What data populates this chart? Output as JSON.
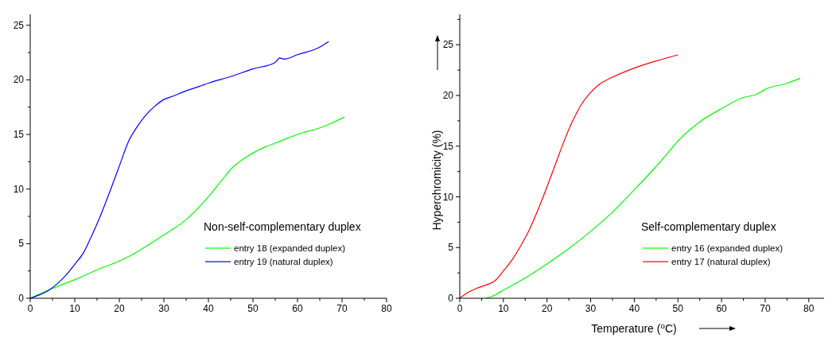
{
  "chart_data": [
    {
      "type": "line",
      "legend_title": "Non-self-complementary duplex",
      "legend": "bottom right",
      "xlim": [
        0,
        80
      ],
      "ylim": [
        0,
        26
      ],
      "xticks": [
        0,
        {
          "value": 5,
          "label": null
        },
        10,
        {
          "value": 15,
          "label": null
        },
        20,
        {
          "value": 25,
          "label": null
        },
        30,
        {
          "value": 35,
          "label": null
        },
        40,
        {
          "value": 45,
          "label": null
        },
        50,
        {
          "value": 55,
          "label": null
        },
        60,
        {
          "value": 65,
          "label": null
        },
        70,
        {
          "value": 75,
          "label": null
        },
        80
      ],
      "yticks": [
        0,
        {
          "value": 2.5,
          "label": null
        },
        5,
        {
          "value": 7.5,
          "label": null
        },
        10,
        {
          "value": 12.5,
          "label": null
        },
        15,
        {
          "value": 17.5,
          "label": null
        },
        20,
        {
          "value": 22.5,
          "label": null
        },
        25
      ],
      "series": [
        {
          "name": "entry 18 (expanded duplex)",
          "color": "#00ff00",
          "x": [
            0,
            5,
            10,
            15,
            20,
            22,
            25,
            30,
            35,
            40,
            43,
            45,
            48,
            50,
            53,
            55,
            58,
            60,
            65,
            68,
            70.5
          ],
          "values": [
            0,
            0.9,
            1.7,
            2.6,
            3.4,
            3.8,
            4.5,
            5.8,
            7.2,
            9.3,
            10.8,
            11.8,
            12.8,
            13.3,
            13.9,
            14.2,
            14.7,
            15.0,
            15.6,
            16.1,
            16.6
          ]
        },
        {
          "name": "entry 19 (natural duplex)",
          "color": "#0000ff",
          "x": [
            0,
            2,
            4,
            6,
            8,
            10,
            12,
            14,
            16,
            18,
            20,
            22,
            24,
            26,
            28,
            30,
            32,
            35,
            38,
            40,
            45,
            50,
            55,
            56,
            57,
            60,
            65,
            67
          ],
          "values": [
            0,
            0.3,
            0.7,
            1.3,
            2.1,
            3.1,
            4.2,
            5.9,
            7.8,
            9.9,
            12.1,
            14.3,
            15.7,
            16.8,
            17.6,
            18.2,
            18.5,
            19.0,
            19.4,
            19.7,
            20.3,
            21.0,
            21.6,
            22.0,
            21.9,
            22.3,
            23.0,
            23.5
          ]
        }
      ]
    },
    {
      "type": "line",
      "xlabel": "Temperature ($^{o}$C)",
      "ylabel": "Hyperchromicity (%)",
      "legend_title": "Self-complementary duplex",
      "legend": "bottom right",
      "xlim": [
        0,
        83.5
      ],
      "ylim": [
        0,
        28
      ],
      "xticks": [
        0,
        {
          "value": 5,
          "label": null
        },
        10,
        {
          "value": 15,
          "label": null
        },
        20,
        {
          "value": 25,
          "label": null
        },
        30,
        {
          "value": 35,
          "label": null
        },
        40,
        {
          "value": 45,
          "label": null
        },
        50,
        {
          "value": 55,
          "label": null
        },
        60,
        {
          "value": 65,
          "label": null
        },
        70,
        {
          "value": 75,
          "label": null
        },
        80
      ],
      "yticks": [
        0,
        {
          "value": 2.5,
          "label": null
        },
        5,
        {
          "value": 7.5,
          "label": null
        },
        10,
        {
          "value": 12.5,
          "label": null
        },
        15,
        {
          "value": 17.5,
          "label": null
        },
        20,
        {
          "value": 22.5,
          "label": null
        },
        25,
        {
          "value": 27.5,
          "label": null
        }
      ],
      "series": [
        {
          "name": "entry 16 (expanded duplex)",
          "color": "#00ff00",
          "x": [
            6,
            8,
            10,
            15,
            20,
            25,
            30,
            35,
            40,
            45,
            48,
            50,
            55,
            60,
            65,
            68,
            70,
            75,
            78
          ],
          "values": [
            0,
            0.3,
            0.8,
            2.0,
            3.4,
            4.9,
            6.6,
            8.5,
            10.7,
            13.0,
            14.5,
            15.5,
            17.4,
            18.7,
            19.8,
            20.1,
            20.6,
            21.2,
            21.7
          ]
        },
        {
          "name": "entry 17 (natural duplex)",
          "color": "#ff0000",
          "x": [
            0,
            2,
            4,
            6,
            8,
            10,
            12,
            14,
            16,
            18,
            20,
            22,
            24,
            26,
            28,
            30,
            32,
            35,
            40,
            45,
            50
          ],
          "values": [
            0,
            0.6,
            1.0,
            1.3,
            1.7,
            2.7,
            3.8,
            5.2,
            6.8,
            8.8,
            11.0,
            13.3,
            15.6,
            17.6,
            19.2,
            20.3,
            21.1,
            21.8,
            22.7,
            23.4,
            24.0
          ]
        }
      ]
    }
  ]
}
